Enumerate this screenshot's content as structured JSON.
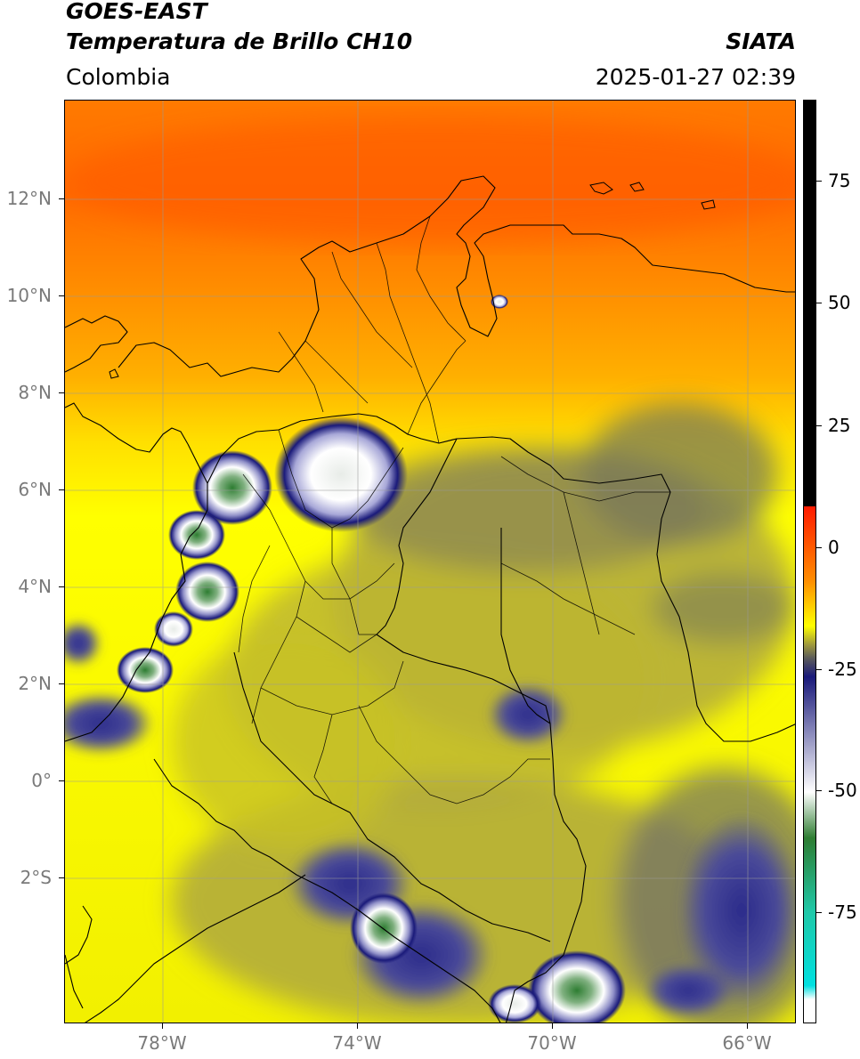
{
  "header": {
    "satellite": "GOES-EAST",
    "product": "Temperatura de Brillo CH10",
    "region": "Colombia",
    "institution": "SIATA",
    "datetime": "2025-01-27 02:39"
  },
  "map": {
    "lat_labels": [
      "12°N",
      "10°N",
      "8°N",
      "6°N",
      "4°N",
      "2°N",
      "0°",
      "2°S"
    ],
    "lon_labels": [
      "78°W",
      "74°W",
      "70°W",
      "66°W"
    ]
  },
  "colorbar": {
    "tick_labels": [
      "75",
      "50",
      "25",
      "0",
      "-25",
      "-50",
      "-75"
    ],
    "colors": {
      "black": "#000000",
      "red": "#ff1a00",
      "orange": "#ff8c00",
      "yellow": "#ffff00",
      "olive": "#a09a3c",
      "gray": "#5a5a5a",
      "navy": "#1a1a7a",
      "white": "#ffffff",
      "green": "#2e7d32",
      "teal": "#1fc8a8",
      "cyan": "#00e0e0"
    }
  }
}
